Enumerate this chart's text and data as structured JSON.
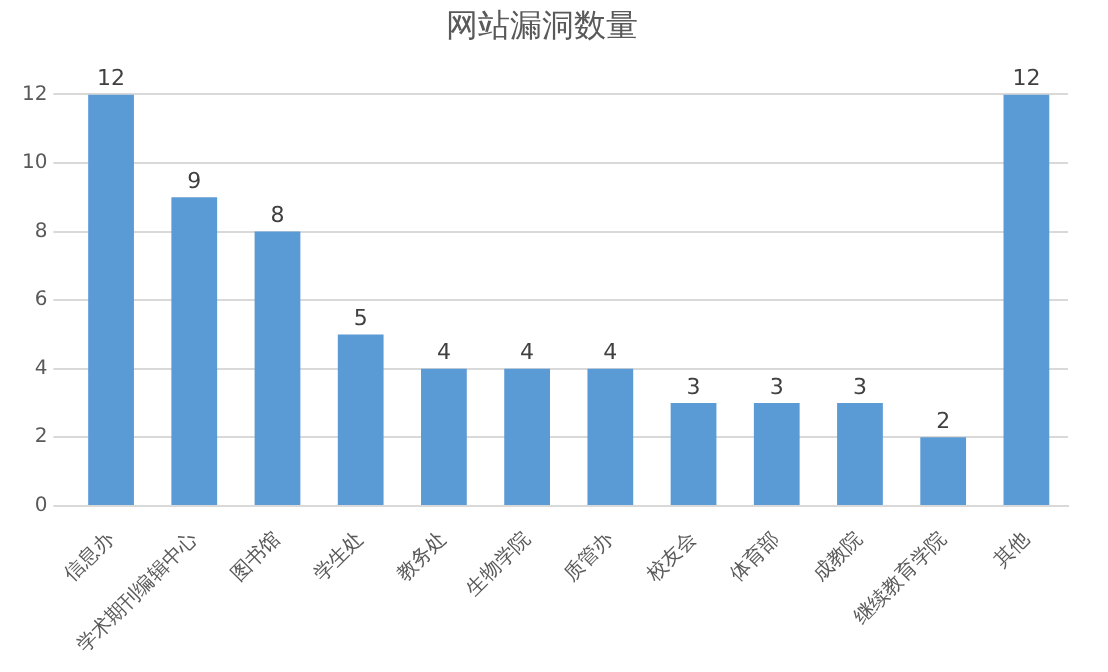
{
  "chart_data": {
    "type": "bar",
    "title": "网站漏洞数量",
    "categories": [
      "信息办",
      "学术期刊编辑中心",
      "图书馆",
      "学生处",
      "教务处",
      "生物学院",
      "质管办",
      "校友会",
      "体育部",
      "成教院",
      "继续教育学院",
      "其他"
    ],
    "values": [
      12,
      9,
      8,
      5,
      4,
      4,
      4,
      3,
      3,
      3,
      2,
      12
    ],
    "color": "#5b9bd5",
    "ylim": [
      0,
      12
    ],
    "yticks": [
      0,
      2,
      4,
      6,
      8,
      10,
      12
    ],
    "grid": "y",
    "data_labels": true,
    "legend": false
  }
}
